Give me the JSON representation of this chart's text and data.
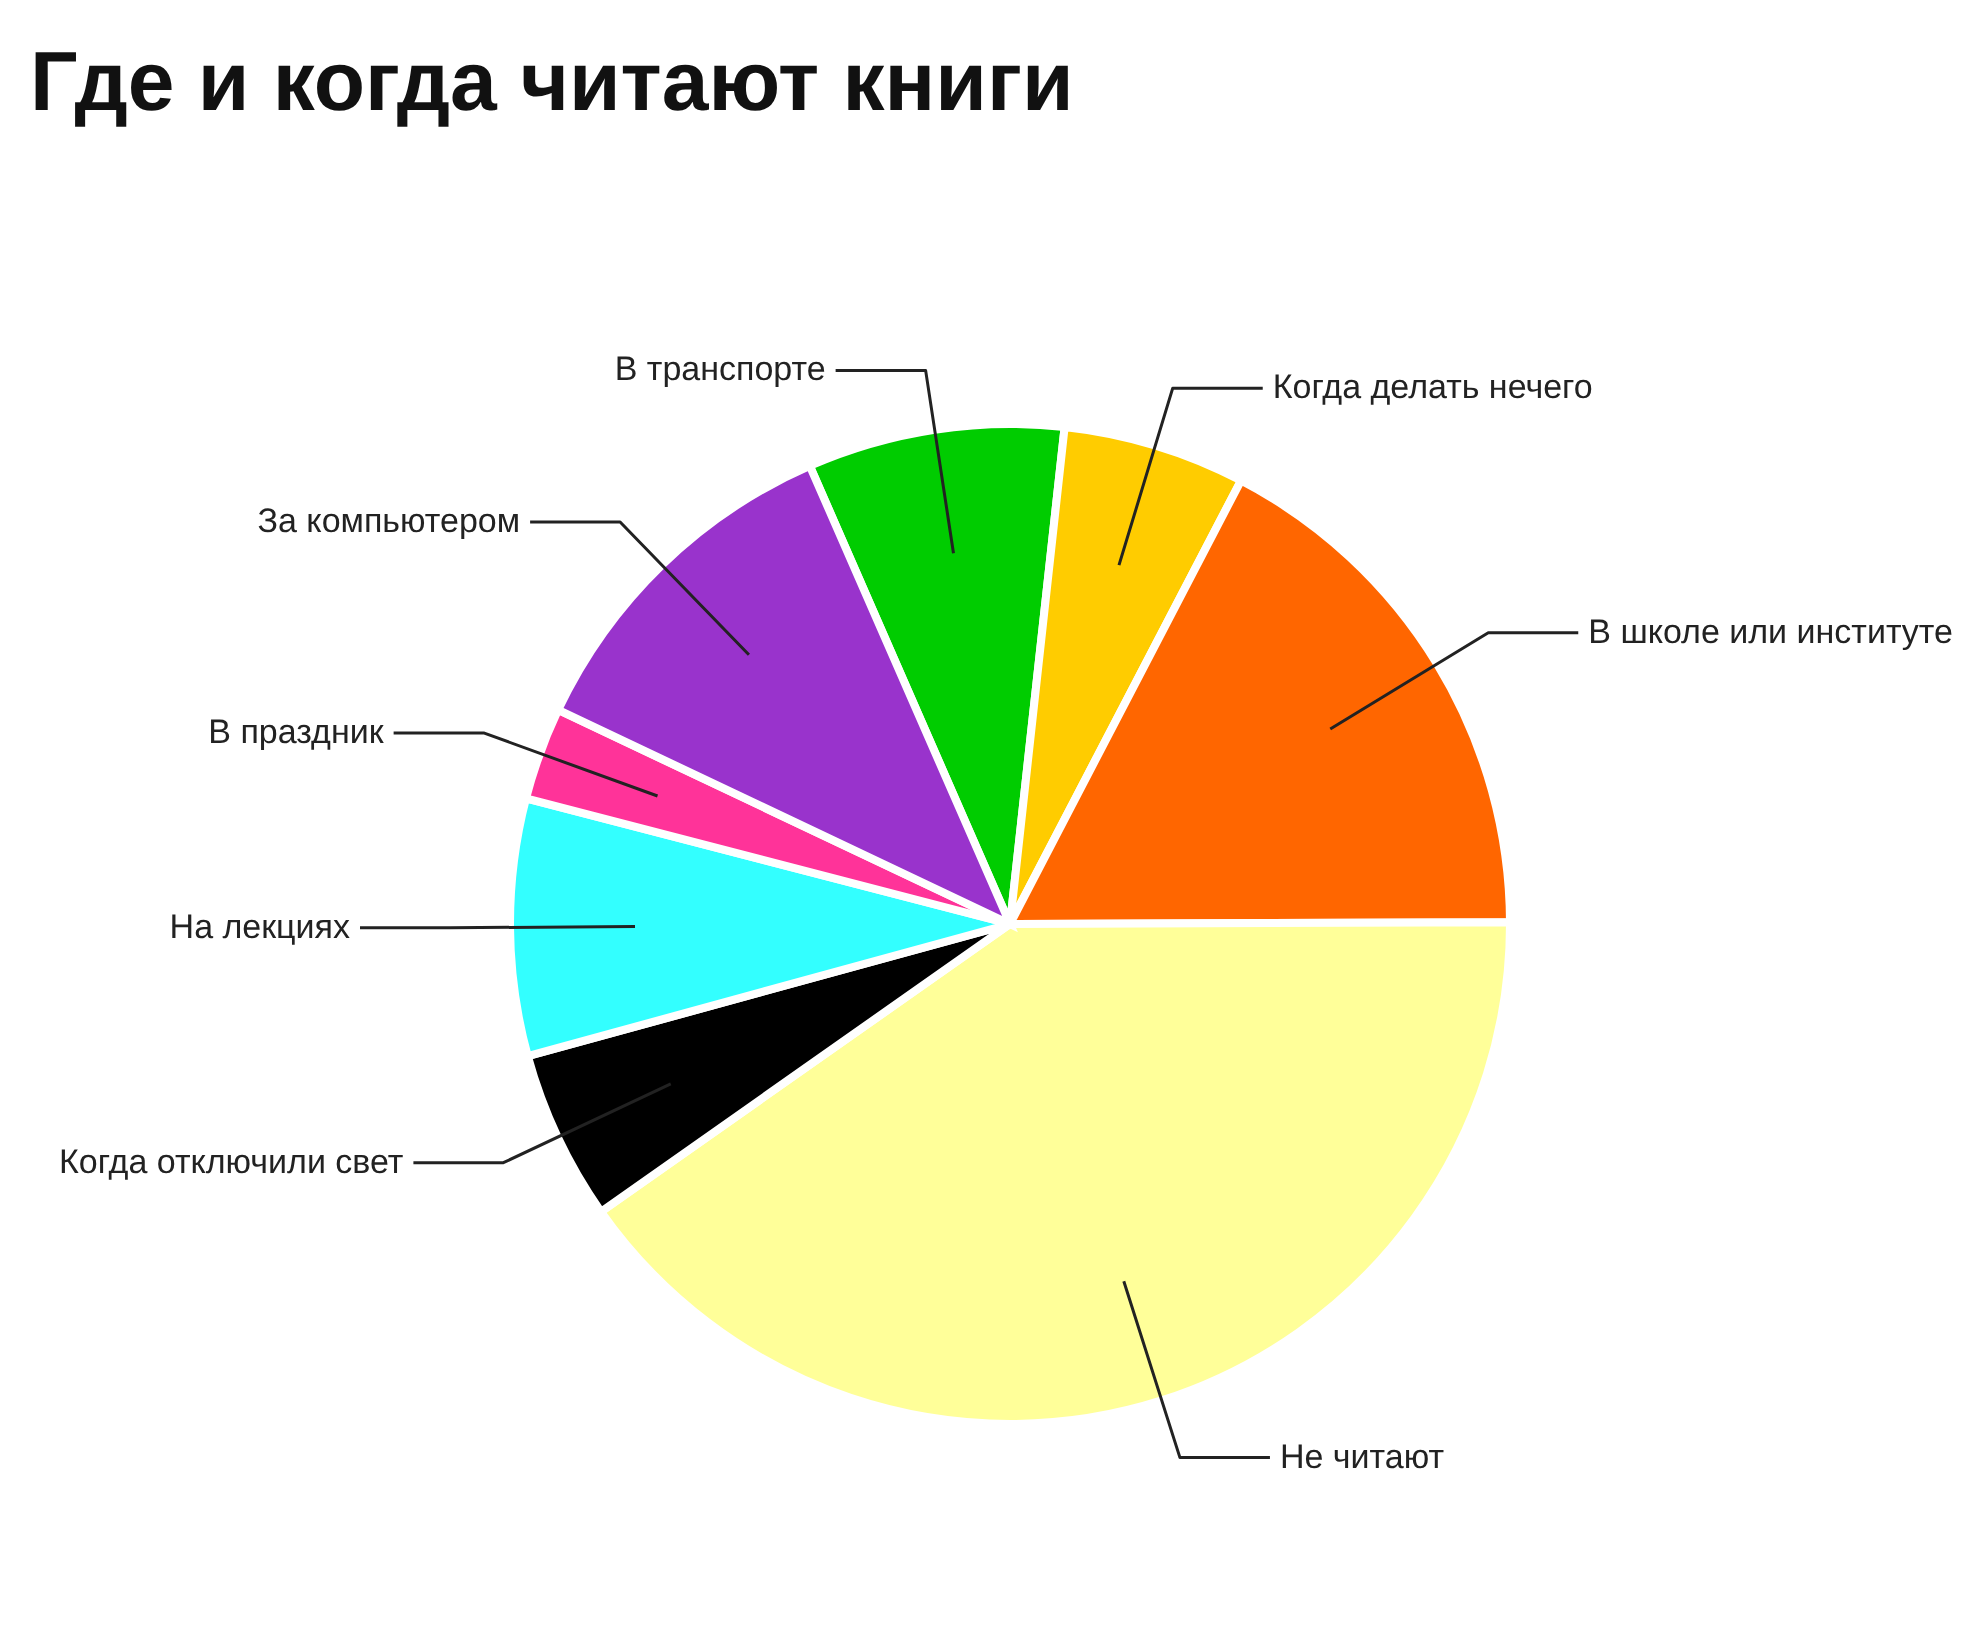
{
  "chart_data": {
    "type": "pie",
    "title": "Где и когда читают книги",
    "categories": [
      "В транспорте",
      "Когда делать нечего",
      "В школе или институте",
      "Не читают",
      "Когда отключили свет",
      "На лекциях",
      "В праздник",
      "За компьютером"
    ],
    "values": [
      8.3,
      5.9,
      17.3,
      40.3,
      5.5,
      8.3,
      3,
      11.4
    ],
    "colors": [
      "#00cc00",
      "#ffcc00",
      "#ff6600",
      "#ffff99",
      "#000000",
      "#33ffff",
      "#ff3399",
      "#9933cc"
    ]
  }
}
